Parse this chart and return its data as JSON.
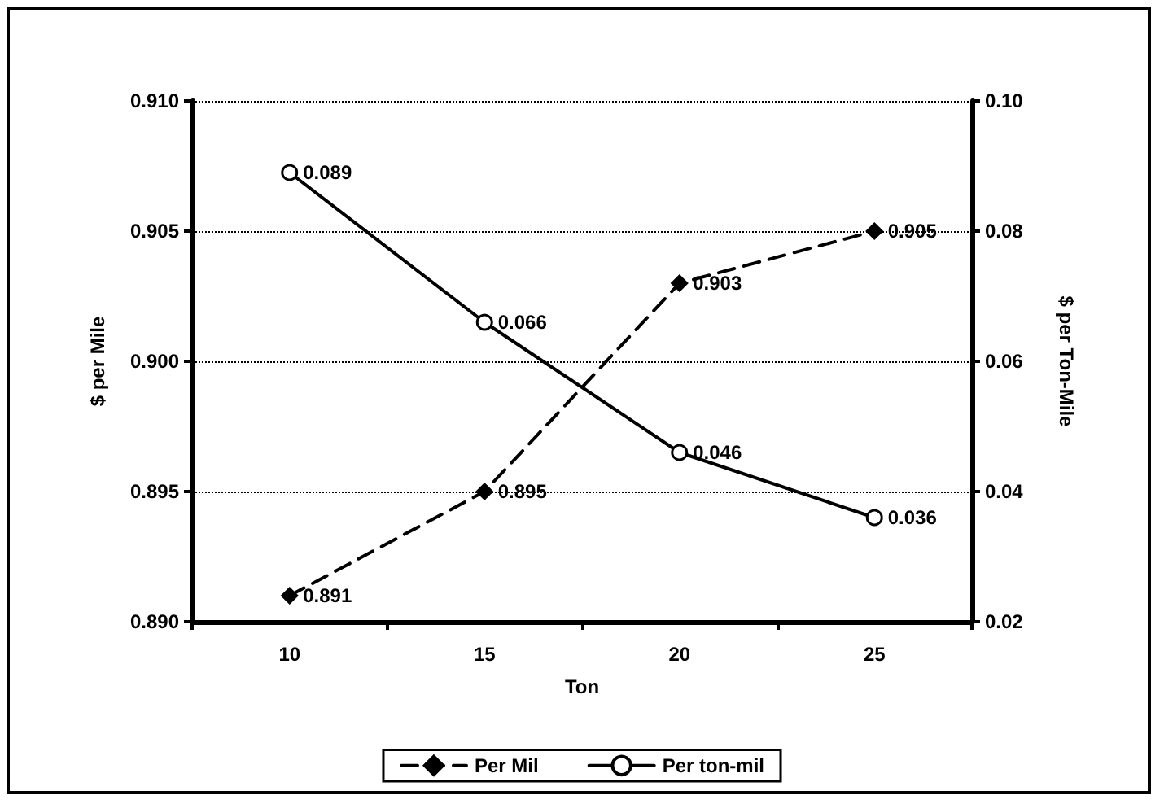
{
  "chart_data": {
    "type": "line",
    "xlabel": "Ton",
    "ylabel": "$ per Mile",
    "y2label": "$ per Ton-Mile",
    "categories": [
      "10",
      "15",
      "20",
      "25"
    ],
    "series": [
      {
        "name": "Per Mil",
        "color": "#000000",
        "values": [
          0.891,
          0.895,
          0.903,
          0.905
        ],
        "marker": "diamond",
        "line_style": "dashed"
      },
      {
        "name": "Per ton-mil",
        "color": "#000000",
        "values": [
          0.089,
          0.066,
          0.046,
          0.036
        ],
        "axis": "y2",
        "marker": "circle",
        "line_style": "solid"
      }
    ],
    "ylim": [
      0.89,
      0.91
    ],
    "yticks": [
      {
        "value": 0.89,
        "label": "0.890"
      },
      0.895,
      {
        "value": 0.9,
        "label": "0.900"
      },
      0.905,
      {
        "value": 0.91,
        "label": "0.910"
      }
    ],
    "y2lim": [
      0.02,
      0.1
    ],
    "y2ticks": [
      0.02,
      0.04,
      0.06,
      0.08,
      {
        "value": 0.1,
        "label": "0.10"
      }
    ],
    "grid": "y",
    "legend": "bottom",
    "data_labels": true
  }
}
